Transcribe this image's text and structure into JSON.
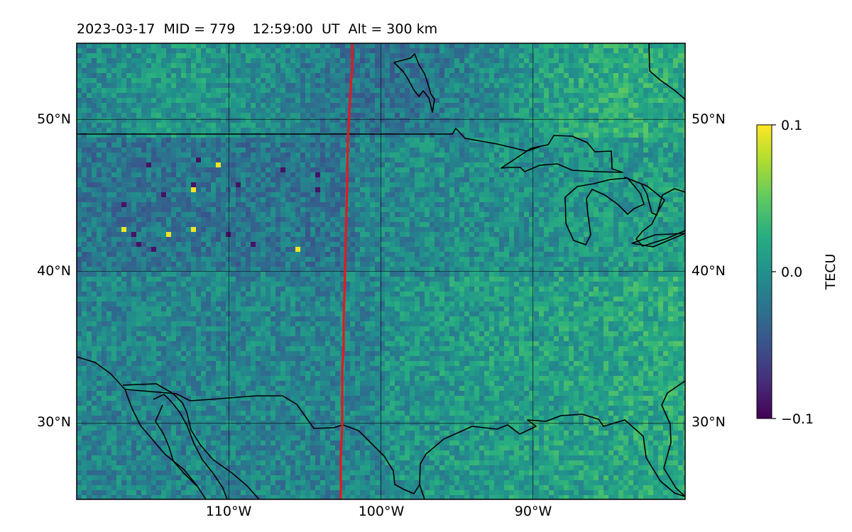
{
  "title": "2023-03-17  MID = 779    12:59:00  UT  Alt = 300 km",
  "map": {
    "type": "geographic-heatmap",
    "lat_ticks": [
      "50°N",
      "40°N",
      "30°N"
    ],
    "lon_ticks": [
      "110°W",
      "100°W",
      "90°W"
    ],
    "lat_values": [
      50,
      40,
      30
    ],
    "lon_values": [
      -110,
      -100,
      -90
    ],
    "lat_range": [
      25,
      55
    ],
    "lon_range": [
      -120,
      -80
    ],
    "grid": true,
    "colormap": "viridis"
  },
  "colorbar": {
    "label": "TECU",
    "max_label": "0.1",
    "mid_label": "0.0",
    "min_label": "−0.1",
    "min": -0.1,
    "max": 0.1
  },
  "overlay": {
    "line_color": "#e41a1c",
    "coastline_color": "#000000"
  }
}
